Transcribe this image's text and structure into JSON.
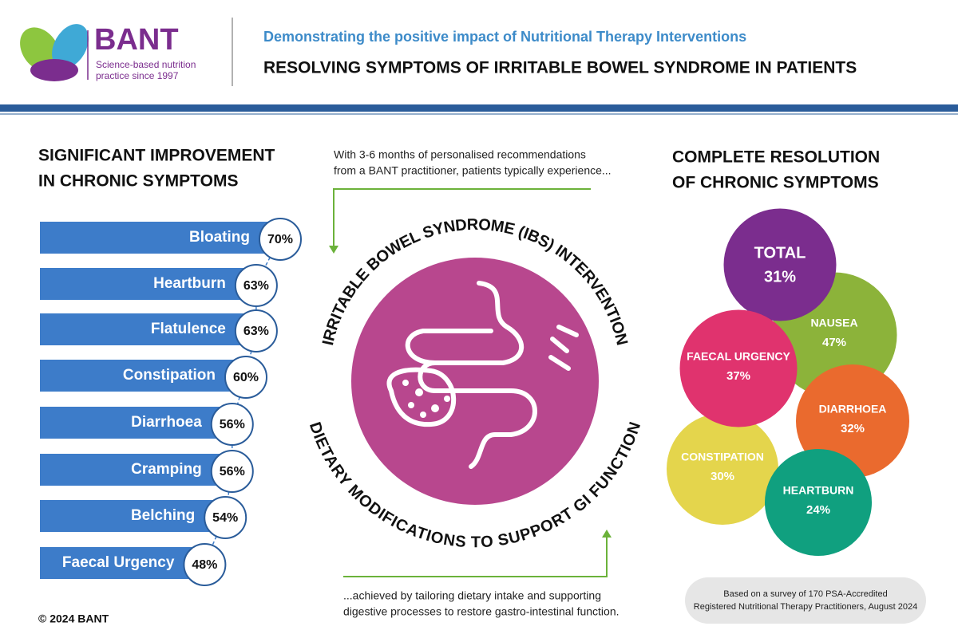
{
  "header": {
    "logo": "BANT",
    "tagline": [
      "Science-based nutrition",
      "practice since 1997"
    ],
    "subtitle": "Demonstrating the positive impact of Nutritional Therapy Interventions",
    "title": "RESOLVING SYMPTOMS OF IRRITABLE BOWEL SYNDROME IN PATIENTS"
  },
  "chart_data": [
    {
      "type": "bar",
      "orientation": "horizontal",
      "title": [
        "SIGNIFICANT IMPROVEMENT",
        "IN CHRONIC SYMPTOMS"
      ],
      "categories": [
        "Bloating",
        "Heartburn",
        "Flatulence",
        "Constipation",
        "Diarrhoea",
        "Cramping",
        "Belching",
        "Faecal Urgency"
      ],
      "values": [
        70,
        63,
        63,
        60,
        56,
        56,
        54,
        48
      ],
      "value_labels": [
        "70%",
        "63%",
        "63%",
        "60%",
        "56%",
        "56%",
        "54%",
        "48%"
      ],
      "color": "#3d7cc9"
    },
    {
      "type": "bubble",
      "title": [
        "COMPLETE RESOLUTION",
        "OF CHRONIC SYMPTOMS"
      ],
      "categories": [
        "NAUSEA",
        "TOTAL",
        "CONSTIPATION",
        "FAECAL URGENCY",
        "DIARRHOEA",
        "HEARTBURN"
      ],
      "values": [
        47,
        31,
        30,
        37,
        32,
        24
      ],
      "value_labels": [
        "47%",
        "31%",
        "30%",
        "37%",
        "32%",
        "24%"
      ],
      "colors": [
        "#8cb33a",
        "#7b2d8e",
        "#e4d54c",
        "#e0336e",
        "#ea6a2e",
        "#10a07f"
      ]
    }
  ],
  "center": {
    "intro": [
      "With 3-6 months of personalised recommendations",
      "from a BANT practitioner, patients typically experience..."
    ],
    "arc_top": "IRRITABLE BOWEL SYNDROME (IBS) INTERVENTION",
    "arc_bottom": "DIETARY MODIFICATIONS TO SUPPORT GI FUNCTION",
    "outro": [
      "...achieved by tailoring dietary intake and supporting",
      "digestive processes to restore gastro-intestinal function."
    ]
  },
  "footer": {
    "copyright": "© 2024 BANT",
    "note": [
      "Based on a survey of 170 PSA-Accredited",
      "Registered Nutritional Therapy Practitioners, August 2024"
    ]
  }
}
